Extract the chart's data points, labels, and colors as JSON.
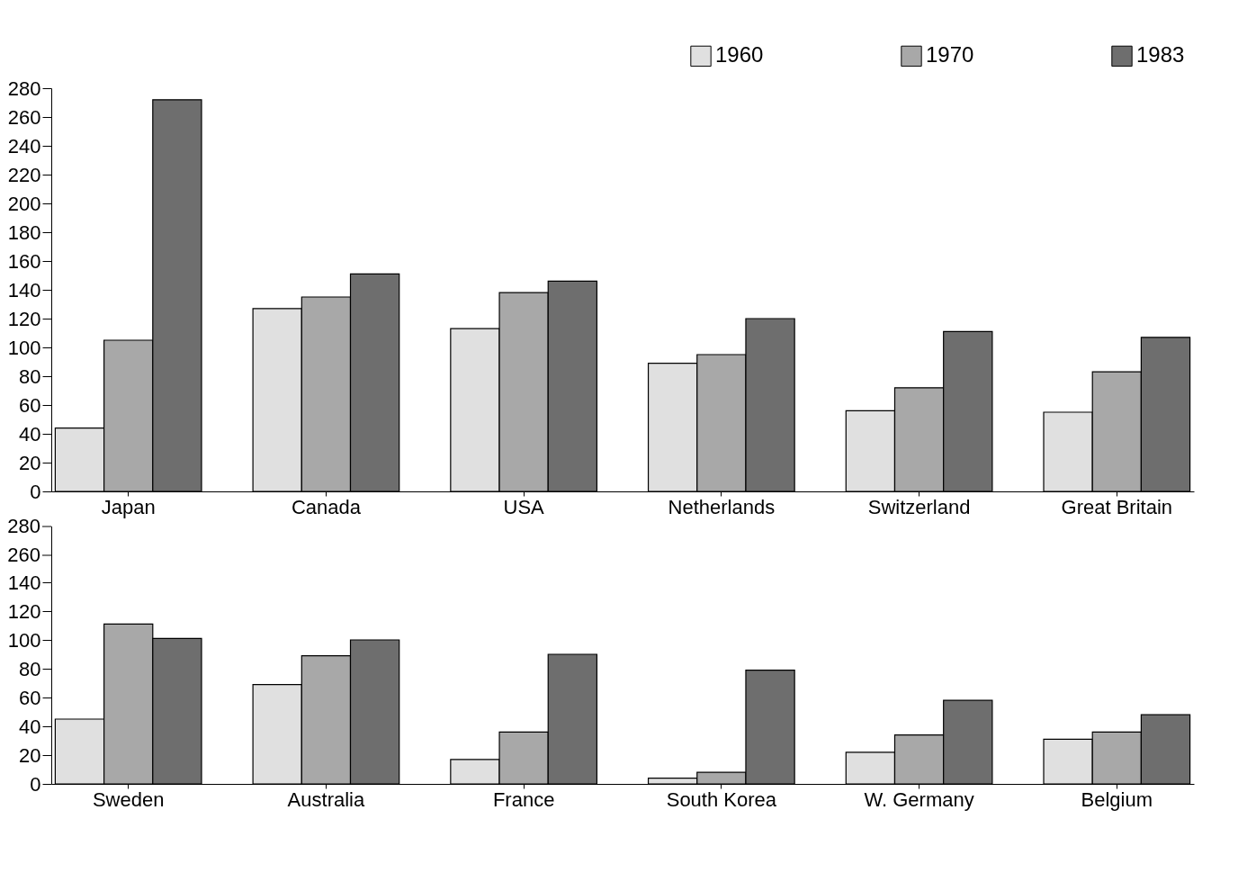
{
  "chart_data": [
    {
      "type": "bar",
      "categories": [
        "Japan",
        "Canada",
        "USA",
        "Netherlands",
        "Switzerland",
        "Great Britain"
      ],
      "ylim": [
        0,
        280
      ],
      "yticks": [
        0,
        20,
        40,
        60,
        80,
        100,
        120,
        140,
        160,
        180,
        200,
        220,
        240,
        260,
        280
      ],
      "legend": "top right",
      "series": [
        {
          "name": "1960",
          "color": "#e0e0e0",
          "values": [
            44,
            127,
            113,
            89,
            56,
            55
          ]
        },
        {
          "name": "1970",
          "color": "#a8a8a8",
          "values": [
            105,
            135,
            138,
            95,
            72,
            83
          ]
        },
        {
          "name": "1983",
          "color": "#6e6e6e",
          "values": [
            272,
            151,
            146,
            120,
            111,
            107
          ]
        }
      ]
    },
    {
      "type": "bar",
      "categories": [
        "Sweden",
        "Australia",
        "France",
        "South Korea",
        "W. Germany",
        "Belgium"
      ],
      "ylim": [
        0,
        140
      ],
      "yticks": [
        0,
        20,
        40,
        60,
        80,
        100,
        120,
        140
      ],
      "annotations": [
        "280",
        "260"
      ],
      "series": [
        {
          "color": "#e0e0e0",
          "values": [
            45,
            69,
            17,
            4,
            22,
            31
          ]
        },
        {
          "color": "#a8a8a8",
          "values": [
            111,
            89,
            36,
            8,
            34,
            36
          ]
        },
        {
          "color": "#6e6e6e",
          "values": [
            101,
            100,
            90,
            79,
            58,
            48
          ]
        }
      ]
    }
  ]
}
